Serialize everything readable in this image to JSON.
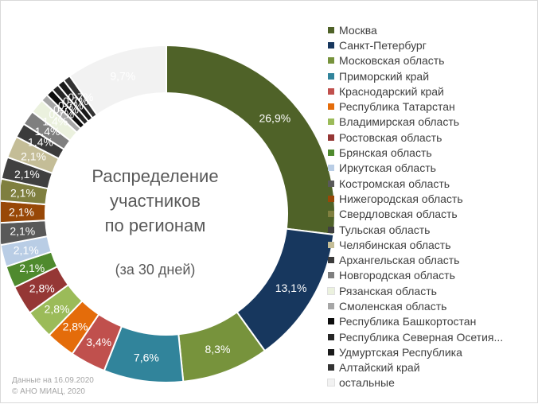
{
  "chart_data": {
    "type": "pie",
    "subtype": "donut",
    "title": "Распределение участников по регионам",
    "subtitle": "(за 30 дней)",
    "title_lines": [
      "Распределение",
      "участников",
      "по регионам"
    ],
    "legend_position": "right",
    "categories": [
      "Москва",
      "Санкт-Петербург",
      "Московская область",
      "Приморский край",
      "Краснодарский край",
      "Республика Татарстан",
      "Владимирская область",
      "Ростовская область",
      "Брянская область",
      "Иркутская область",
      "Костромская область",
      "Нижегородская область",
      "Свердловская область",
      "Тульская область",
      "Челябинская область",
      "Архангельская область",
      "Новгородская область",
      "Рязанская область",
      "Смоленская область",
      "Республика Башкортостан",
      "Республика Северная Осетия...",
      "Удмуртская Республика",
      "Алтайский край",
      "остальные"
    ],
    "values": [
      26.9,
      13.1,
      8.3,
      7.6,
      3.4,
      2.8,
      2.8,
      2.8,
      2.1,
      2.1,
      2.1,
      2.1,
      2.1,
      2.1,
      2.1,
      1.4,
      1.4,
      1.4,
      0.7,
      0.7,
      0.7,
      0.7,
      0.7,
      9.7
    ],
    "value_labels": [
      "26,9%",
      "13,1%",
      "8,3%",
      "7,6%",
      "3,4%",
      "2,8%",
      "2,8%",
      "2,8%",
      "2,1%",
      "2,1%",
      "2,1%",
      "2,1%",
      "2,1%",
      "2,1%",
      "2,1%",
      "1,4%",
      "1,4%",
      "1,4%",
      "0,7%",
      "0,7%",
      "0,7%",
      "0,7%",
      "0,7%",
      "9,7%"
    ],
    "colors": [
      "#4f6228",
      "#17375e",
      "#77933c",
      "#31849b",
      "#c0504d",
      "#e46c0a",
      "#9bbb59",
      "#953735",
      "#4f8a2e",
      "#b9cde5",
      "#595959",
      "#984807",
      "#7f7f3f",
      "#404040",
      "#c4bd97",
      "#3b3b3b",
      "#7f7f7f",
      "#ebf1de",
      "#a6a6a6",
      "#0d0d0d",
      "#262626",
      "#1a1a1a",
      "#333333",
      "#f2f2f2"
    ],
    "label_colors": [
      "#ffffff",
      "#ffffff",
      "#ffffff",
      "#ffffff",
      "#ffffff",
      "#ffffff",
      "#ffffff",
      "#ffffff",
      "#ffffff",
      "#ffffff",
      "#ffffff",
      "#ffffff",
      "#ffffff",
      "#ffffff",
      "#ffffff",
      "#ffffff",
      "#ffffff",
      "#ffffff",
      "#ffffff",
      "#ffffff",
      "#ffffff",
      "#ffffff",
      "#ffffff",
      "#ffffff"
    ]
  },
  "footnote": {
    "date_line": "Данные на 16.09.2020",
    "copyright_line": "© АНО МИАЦ, 2020"
  }
}
